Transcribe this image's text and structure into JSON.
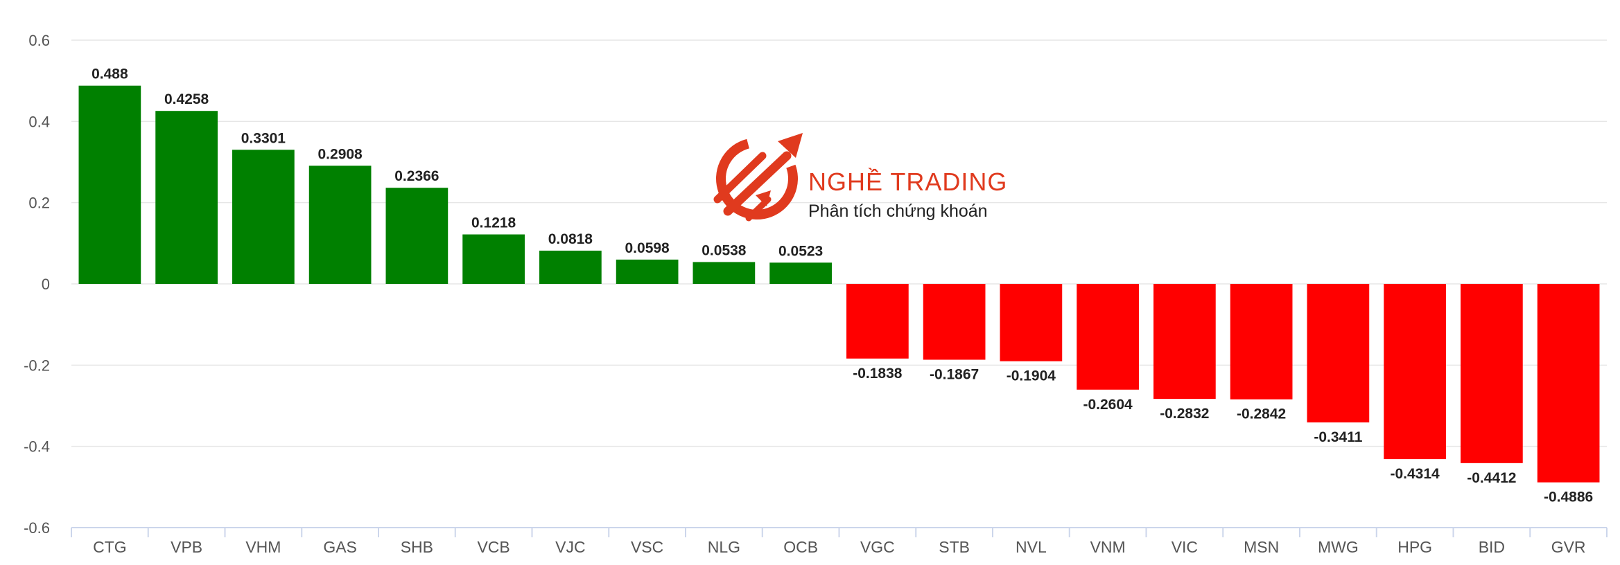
{
  "chart_data": {
    "type": "bar",
    "categories": [
      "CTG",
      "VPB",
      "VHM",
      "GAS",
      "SHB",
      "VCB",
      "VJC",
      "VSC",
      "NLG",
      "OCB",
      "VGC",
      "STB",
      "NVL",
      "VNM",
      "VIC",
      "MSN",
      "MWG",
      "HPG",
      "BID",
      "GVR"
    ],
    "values": [
      0.488,
      0.4258,
      0.3301,
      0.2908,
      0.2366,
      0.1218,
      0.0818,
      0.0598,
      0.0538,
      0.0523,
      -0.1838,
      -0.1867,
      -0.1904,
      -0.2604,
      -0.2832,
      -0.2842,
      -0.3411,
      -0.4314,
      -0.4412,
      -0.4886
    ],
    "value_labels": [
      "0.488",
      "0.4258",
      "0.3301",
      "0.2908",
      "0.2366",
      "0.1218",
      "0.0818",
      "0.0598",
      "0.0538",
      "0.0523",
      "-0.1838",
      "-0.1867",
      "-0.1904",
      "-0.2604",
      "-0.2832",
      "-0.2842",
      "-0.3411",
      "-0.4314",
      "-0.4412",
      "-0.4886"
    ],
    "ylim": [
      -0.6,
      0.6
    ],
    "yticks": [
      0.6,
      0.4,
      0.2,
      0,
      -0.2,
      -0.4,
      -0.6
    ],
    "ytick_labels": [
      "0.6",
      "0.4",
      "0.2",
      "0",
      "-0.2",
      "-0.4",
      "-0.6"
    ],
    "grid": true,
    "colors": {
      "positive": "#008000",
      "negative": "#ff0000",
      "grid": "#e6e6e6",
      "axis": "#ccd6eb"
    }
  },
  "watermark": {
    "title": "NGHỀ TRADING",
    "subtitle": "Phân tích chứng khoán",
    "color": "#e03a1e"
  }
}
